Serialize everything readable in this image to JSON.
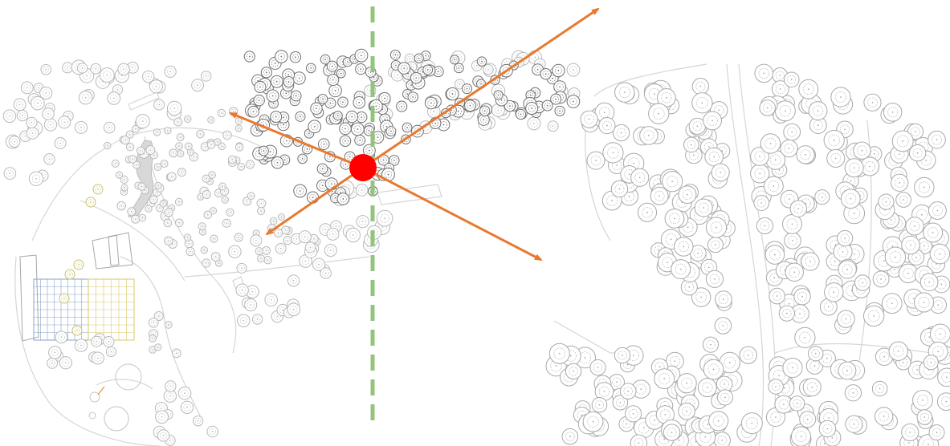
{
  "map": {
    "colors": {
      "background": "#ffffff",
      "divider": "#93c47d",
      "arrow": "#e8792f",
      "viewpoint": "#ff0000",
      "path_line": "#d6d6d6",
      "tree_light": "#b8b8b8",
      "tree_dark": "#6f6f6f",
      "tree_right": "#a9a9a9",
      "building_line": "#a7a7a7",
      "grid_blue": "#8aa2c8",
      "grid_yellow": "#d9c868",
      "tree_olive": "#c7c36e"
    },
    "overlay": {
      "divider_style": "dashed",
      "viewpoint_marker": "filled-circle",
      "arrow_count": 4
    },
    "sections": [
      "site-plan-left",
      "site-plan-right"
    ]
  }
}
